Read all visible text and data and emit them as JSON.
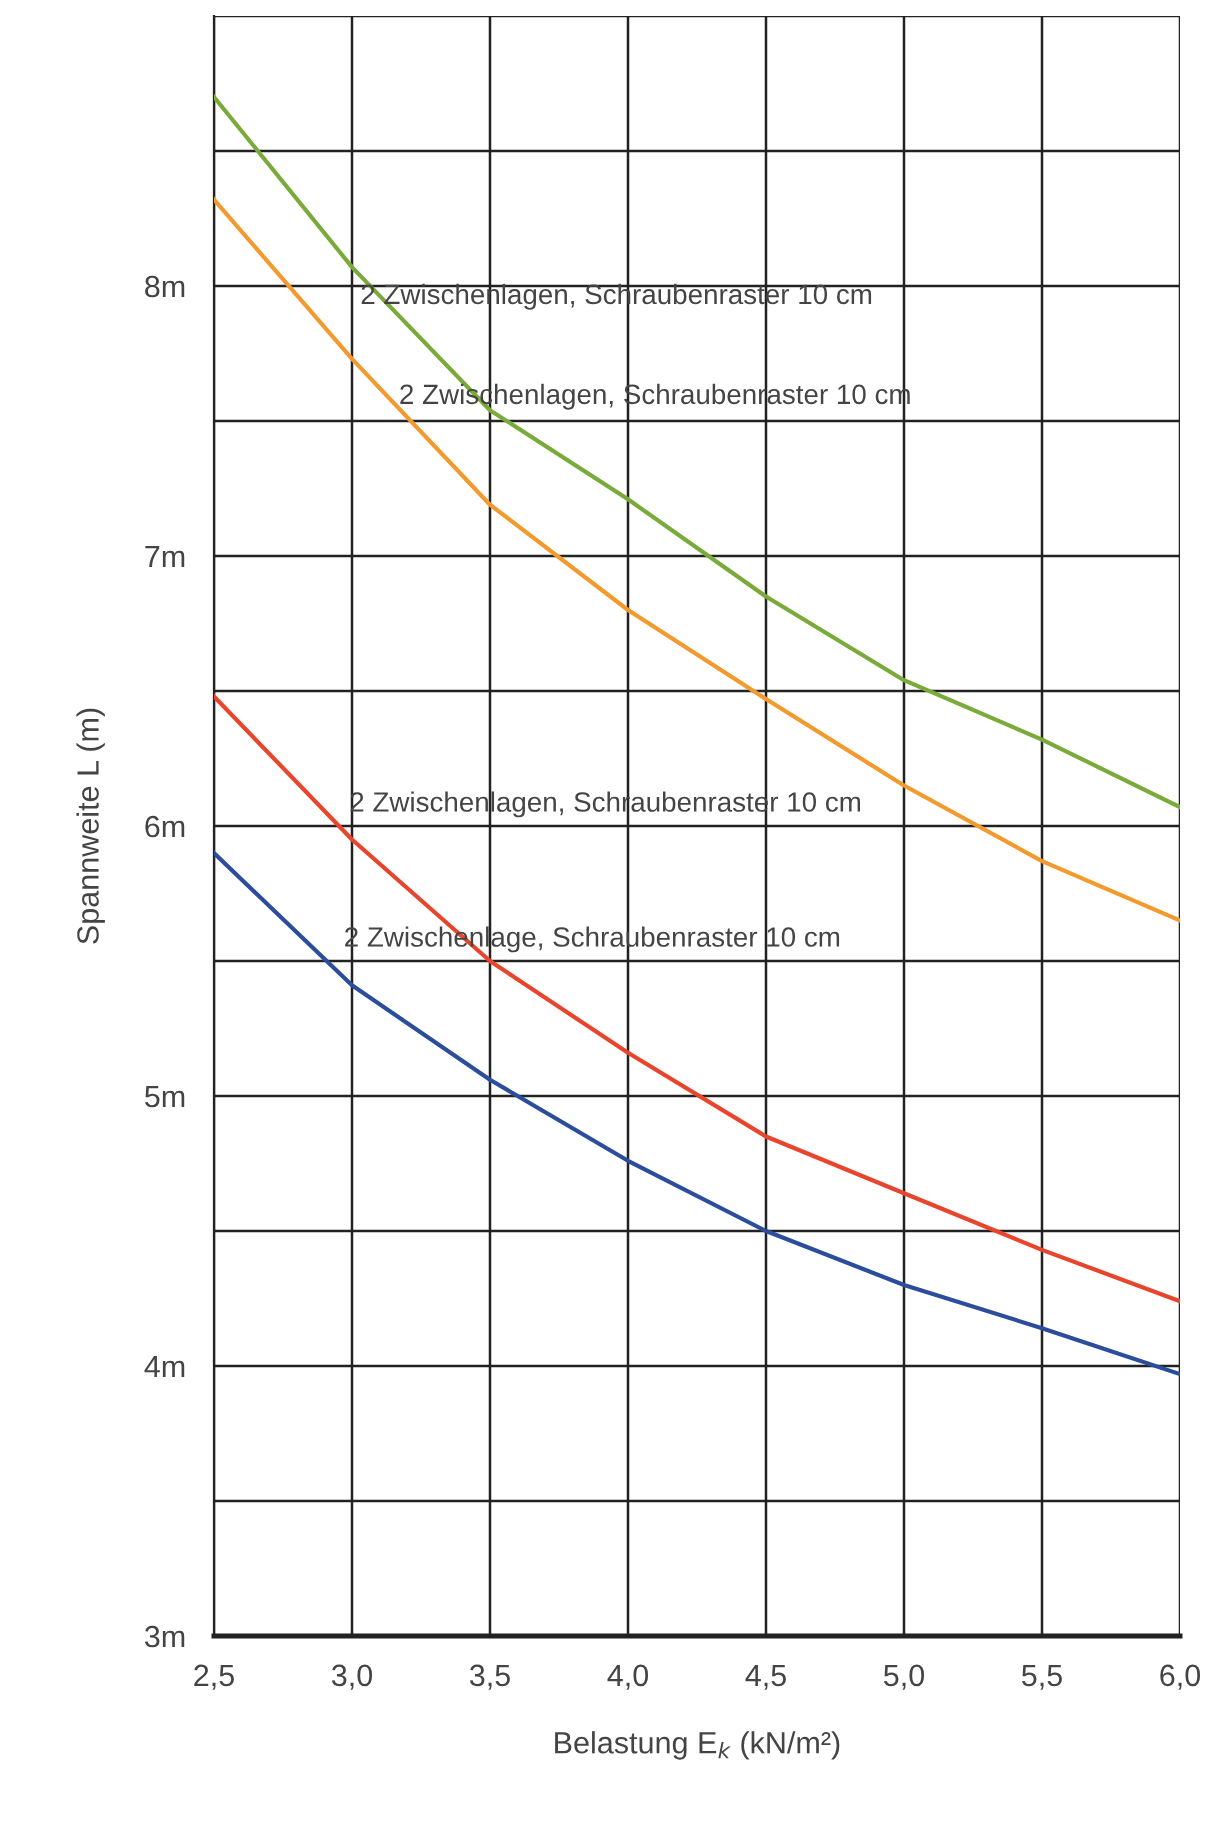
{
  "chart_data": {
    "type": "line",
    "xlabel": "Belastung E$_{k}$ (kN/m²)",
    "ylabel": "Spannweite L (m)",
    "x": [
      2.5,
      3.0,
      3.5,
      4.0,
      4.5,
      5.0,
      5.5,
      6.0
    ],
    "series": [
      {
        "name": "2 Zwischenlagen, Schraubenraster 10 cm",
        "color": "#7aab3a",
        "values": [
          8.7,
          8.07,
          7.54,
          7.21,
          6.85,
          6.54,
          6.32,
          6.07
        ]
      },
      {
        "name": "2 Zwischenlagen, Schraubenraster 10 cm",
        "color": "#f39a2e",
        "values": [
          8.32,
          7.73,
          7.19,
          6.8,
          6.47,
          6.15,
          5.87,
          5.65
        ]
      },
      {
        "name": "2 Zwischenlagen, Schraubenraster 10 cm",
        "color": "#e8452c",
        "values": [
          6.48,
          5.95,
          5.5,
          5.16,
          4.85,
          4.64,
          4.43,
          4.24
        ]
      },
      {
        "name": "2 Zwischenlage, Schraubenraster 10 cm",
        "color": "#2b4d9b",
        "values": [
          5.9,
          5.41,
          5.06,
          4.76,
          4.5,
          4.3,
          4.14,
          3.97
        ]
      }
    ],
    "xlim": [
      2.5,
      6.0
    ],
    "ylim": [
      3,
      9
    ],
    "xticks": [
      {
        "value": 2.5,
        "label": "2,5"
      },
      {
        "value": 3.0,
        "label": "3,0"
      },
      {
        "value": 3.5,
        "label": "3,5"
      },
      {
        "value": 4.0,
        "label": "4,0"
      },
      {
        "value": 4.5,
        "label": "4,5"
      },
      {
        "value": 5.0,
        "label": "5,0"
      },
      {
        "value": 5.5,
        "label": "5,5"
      },
      {
        "value": 6.0,
        "label": "6,0"
      }
    ],
    "yticks": [
      {
        "value": 3,
        "label": "3m"
      },
      {
        "value": 3.5,
        "label": null
      },
      {
        "value": 4,
        "label": "4m"
      },
      {
        "value": 4.5,
        "label": null
      },
      {
        "value": 5,
        "label": "5m"
      },
      {
        "value": 5.5,
        "label": null
      },
      {
        "value": 6,
        "label": "6m"
      },
      {
        "value": 6.5,
        "label": null
      },
      {
        "value": 7,
        "label": "7m"
      },
      {
        "value": 7.5,
        "label": null
      },
      {
        "value": 8,
        "label": "8m"
      },
      {
        "value": 8.5,
        "label": null
      },
      {
        "value": 9,
        "label": null
      }
    ],
    "grid": true,
    "legend": false,
    "marker": "none",
    "line_style": "solid"
  }
}
